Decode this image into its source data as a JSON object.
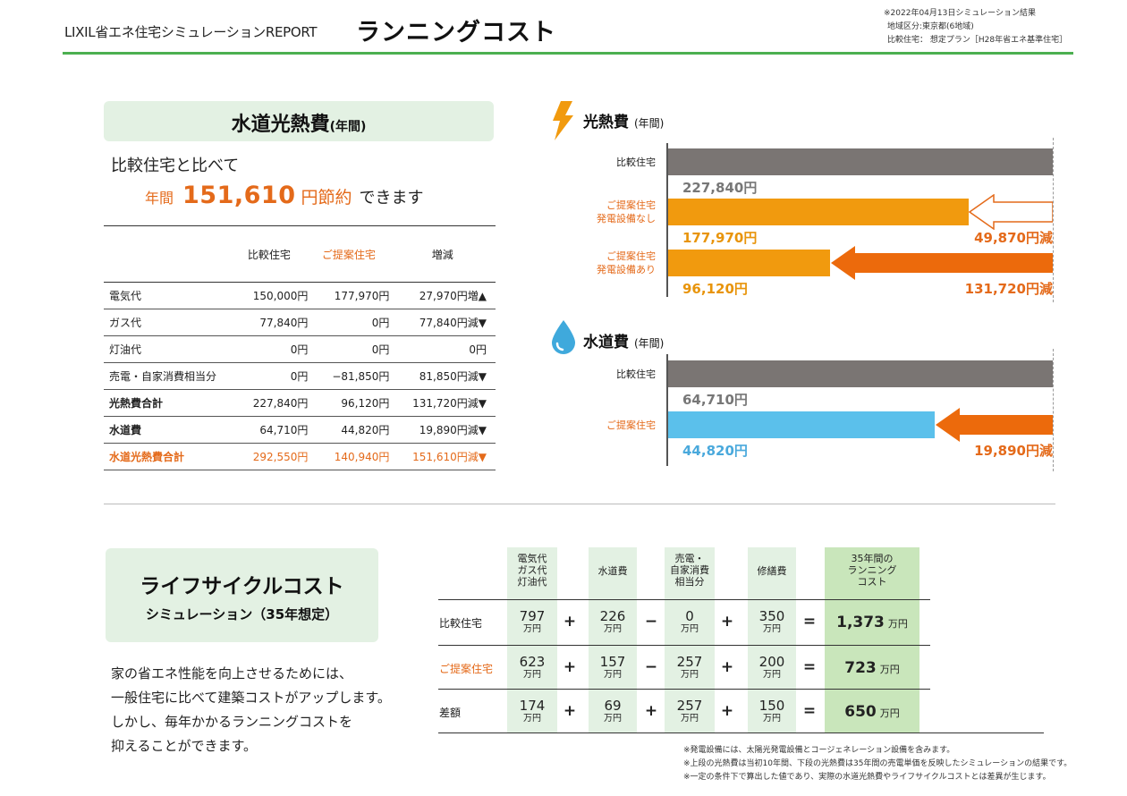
{
  "header": {
    "brand": "LIXIL省エネ住宅シミュレーションREPORT",
    "title": "ランニングコスト",
    "info": [
      "※2022年04月13日シミュレーション結果",
      "地域区分:東京都(6地域)",
      "比較住宅： 想定プラン［H28年省エネ基準住宅］"
    ],
    "accent": "#4caf50"
  },
  "utility": {
    "title": "水道光熱費",
    "title_suffix": "(年間)",
    "compare_text": "比較住宅と比べて",
    "save_prefix": "年間",
    "save_amount": "151,610",
    "save_unit": "円節約",
    "save_suffix": "できます",
    "table": {
      "headers": [
        "",
        "比較住宅",
        "ご提案住宅",
        "増減"
      ],
      "rows": [
        {
          "label": "電気代",
          "compare": "150,000円",
          "proposal": "177,970円",
          "diff": "27,970円増▲"
        },
        {
          "label": "ガス代",
          "compare": "77,840円",
          "proposal": "0円",
          "diff": "77,840円減▼"
        },
        {
          "label": "灯油代",
          "compare": "0円",
          "proposal": "0円",
          "diff": "0円"
        },
        {
          "label": "売電・自家消費相当分",
          "compare": "0円",
          "proposal": "−81,850円",
          "diff": "81,850円減▼"
        },
        {
          "label": "光熱費合計",
          "compare": "227,840円",
          "proposal": "96,120円",
          "diff": "131,720円減▼"
        },
        {
          "label": "水道費",
          "compare": "64,710円",
          "proposal": "44,820円",
          "diff": "19,890円減▼"
        },
        {
          "label": "水道光熱費合計",
          "compare": "292,550円",
          "proposal": "140,940円",
          "diff": "151,610円減▼"
        }
      ]
    }
  },
  "energy_chart": {
    "title": "光熱費",
    "title_suffix": "(年間)",
    "icon": "lightning-icon",
    "max": 227840,
    "bars": [
      {
        "label": [
          "比較住宅"
        ],
        "value": 227840,
        "value_text": "227,840円",
        "color": "#7a7573",
        "label_color": "#222",
        "value_color": "gray"
      },
      {
        "label": [
          "ご提案住宅",
          "発電設備なし"
        ],
        "value": 177970,
        "value_text": "177,970円",
        "color": "#f19a0e",
        "label_color": "#e46a1a",
        "value_color": "org",
        "saving": "49,870円減",
        "arrow": "outline"
      },
      {
        "label": [
          "ご提案住宅",
          "発電設備あり"
        ],
        "value": 96120,
        "value_text": "96,120円",
        "color": "#f19a0e",
        "label_color": "#e46a1a",
        "value_color": "org",
        "saving": "131,720円減",
        "arrow": "solid"
      }
    ]
  },
  "water_chart": {
    "title": "水道費",
    "title_suffix": "(年間)",
    "icon": "water-drop-icon",
    "max": 64710,
    "bars": [
      {
        "label": [
          "比較住宅"
        ],
        "value": 64710,
        "value_text": "64,710円",
        "color": "#7a7573",
        "label_color": "#222",
        "value_color": "gray"
      },
      {
        "label": [
          "ご提案住宅"
        ],
        "value": 44820,
        "value_text": "44,820円",
        "color": "#5bc0eb",
        "label_color": "#e46a1a",
        "value_color": "blue",
        "saving": "19,890円減",
        "arrow": "solid"
      }
    ]
  },
  "lifecycle": {
    "title": "ライフサイクルコスト",
    "subtitle": "シミュレーション（35年想定）",
    "description": [
      "家の省エネ性能を向上させるためには、",
      "一般住宅に比べて建築コストがアップします。",
      "しかし、毎年かかるランニングコストを",
      "抑えることができます。"
    ],
    "headers": [
      [
        "電気代",
        "ガス代",
        "灯油代"
      ],
      [
        "水道費"
      ],
      [
        "売電・",
        "自家消費",
        "相当分"
      ],
      [
        "修繕費"
      ],
      [
        "35年間の",
        "ランニング",
        "コスト"
      ]
    ],
    "unit": "万円",
    "rows": [
      {
        "label": "比較住宅",
        "values": [
          "797",
          "226",
          "0",
          "350"
        ],
        "ops": [
          "+",
          "−",
          "+",
          "="
        ],
        "total": "1,373"
      },
      {
        "label": "ご提案住宅",
        "values": [
          "623",
          "157",
          "257",
          "200"
        ],
        "ops": [
          "+",
          "−",
          "+",
          "="
        ],
        "total": "723"
      },
      {
        "label": "差額",
        "values": [
          "174",
          "69",
          "257",
          "150"
        ],
        "ops": [
          "+",
          "+",
          "+",
          "="
        ],
        "total": "650"
      }
    ]
  },
  "notes": [
    "※発電設備には、太陽光発電設備とコージェネレーション設備を含みます。",
    "※上段の光熱費は当初10年間、下段の光熱費は35年間の売電単価を反映したシミュレーションの結果です。",
    "※一定の条件下で算出した値であり、実際の水道光熱費やライフサイクルコストとは差異が生じます。"
  ]
}
